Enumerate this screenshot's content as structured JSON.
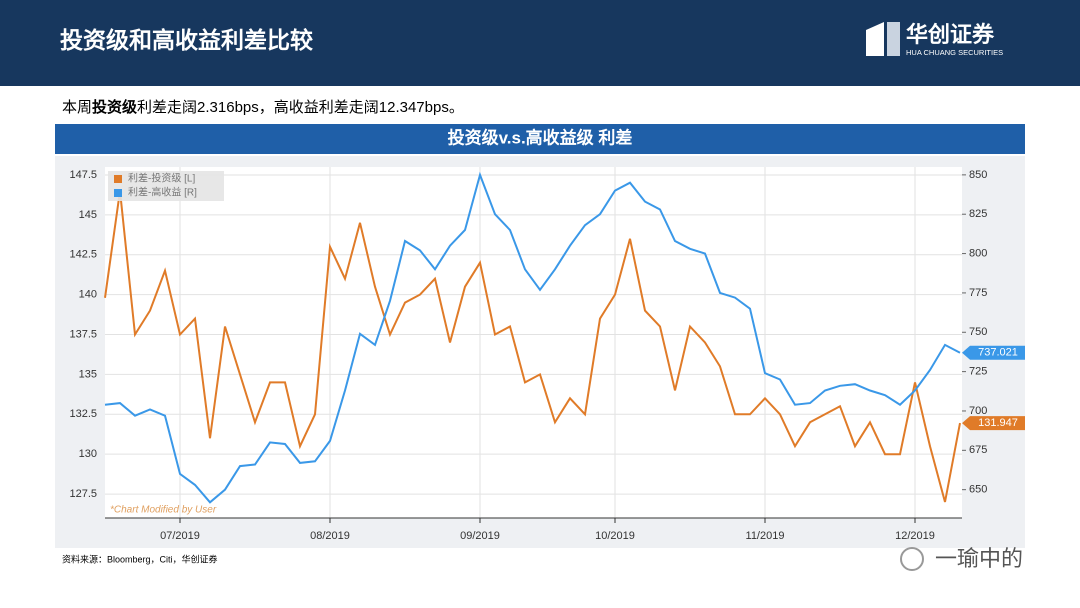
{
  "header": {
    "title": "投资级和高收益利差比较",
    "logo": "华创证券",
    "logo_sub": "HUA CHUANG SECURITIES"
  },
  "summary": {
    "lead": "本周",
    "bold": "投资级",
    "rest": "利差走阔2.316bps，高收益利差走阔12.347bps。"
  },
  "chart_data": {
    "type": "line",
    "title": "投资级v.s.高收益级 利差",
    "note": "*Chart Modified by User",
    "categories": [
      null,
      null,
      null,
      null,
      null,
      "07/2019",
      null,
      null,
      null,
      null,
      null,
      null,
      null,
      null,
      null,
      "08/2019",
      null,
      null,
      null,
      null,
      null,
      null,
      null,
      null,
      null,
      "09/2019",
      null,
      null,
      null,
      null,
      null,
      null,
      null,
      null,
      "10/2019",
      null,
      null,
      null,
      null,
      null,
      null,
      null,
      null,
      null,
      "11/2019",
      null,
      null,
      null,
      null,
      null,
      null,
      null,
      null,
      null,
      "12/2019",
      null,
      null,
      null
    ],
    "series": [
      {
        "name": "利差-投资级 [L]",
        "color": "#e07b28",
        "values": [
          139.8,
          146.5,
          137.5,
          139,
          141.5,
          137.5,
          138.5,
          131,
          138,
          135,
          132,
          134.5,
          134.5,
          130.5,
          132.5,
          143,
          141,
          144.5,
          140.5,
          137.5,
          139.5,
          140,
          141,
          137,
          140.5,
          142,
          137.5,
          138,
          134.5,
          135,
          132,
          133.5,
          132.5,
          138.5,
          140,
          143.5,
          139,
          138,
          134,
          138,
          137,
          135.5,
          132.5,
          132.5,
          133.5,
          132.5,
          130.5,
          132,
          132.5,
          133,
          130.5,
          132,
          130,
          130,
          134.5,
          130.5,
          127,
          131.947
        ]
      },
      {
        "name": "利差-高收益 [R]",
        "color": "#3a98e8",
        "axis": "y2",
        "values": [
          704,
          705,
          697,
          701,
          697,
          660,
          653,
          642,
          650,
          665,
          666,
          680,
          679,
          667,
          668,
          681,
          713,
          749,
          742,
          770,
          808,
          802,
          790,
          805,
          815,
          850,
          825,
          815,
          790,
          777,
          790,
          805,
          818,
          825,
          840,
          845,
          833,
          828,
          808,
          803,
          800,
          775,
          772,
          765,
          724,
          720,
          704,
          705,
          713,
          716,
          717,
          713,
          710,
          704,
          713,
          726,
          742,
          737.021
        ]
      }
    ],
    "ylim": [
      126,
      148
    ],
    "yticks": [
      127.5,
      130,
      132.5,
      135,
      137.5,
      140,
      142.5,
      145,
      147.5
    ],
    "y2lim": [
      632,
      855
    ],
    "y2ticks": [
      650,
      675,
      700,
      725,
      750,
      775,
      800,
      825,
      850
    ],
    "grid": true
  },
  "source": "资料来源：Bloomberg，Citi，华创证券",
  "watermark": "一瑜中的"
}
